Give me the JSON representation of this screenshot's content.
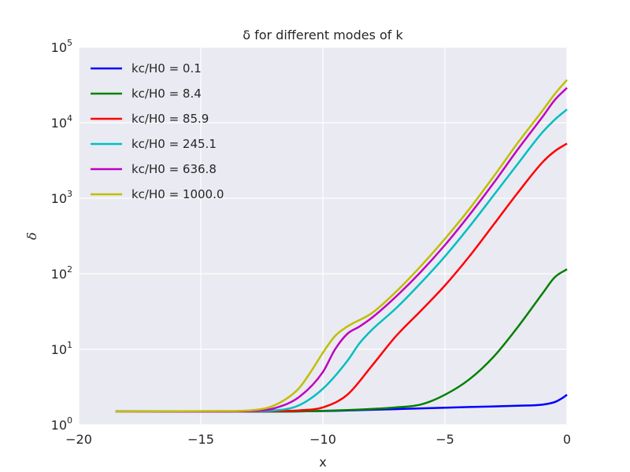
{
  "chart_data": {
    "type": "line",
    "title": "δ for different modes of k",
    "xlabel": "x",
    "ylabel": "δ",
    "xlim": [
      -20,
      0
    ],
    "ylim_log10": [
      0,
      5
    ],
    "yscale": "log",
    "grid": true,
    "legend_position": "top-left",
    "x_ticks": [
      -20,
      -15,
      -10,
      -5,
      0
    ],
    "x_tick_labels": [
      "−20",
      "−15",
      "−10",
      "−5",
      "0"
    ],
    "y_tick_labels": [
      "0",
      "1",
      "2",
      "3",
      "4",
      "5"
    ],
    "y_tick_base": "10",
    "legend_prefix": "kc/H0 = ",
    "series": [
      {
        "name": "0.1",
        "color": "#0000ff",
        "points": [
          [
            -18.5,
            1.5
          ],
          [
            -14,
            1.5
          ],
          [
            -12,
            1.5
          ],
          [
            -10,
            1.52
          ],
          [
            -8,
            1.58
          ],
          [
            -6,
            1.65
          ],
          [
            -4,
            1.72
          ],
          [
            -2,
            1.79
          ],
          [
            -1,
            1.85
          ],
          [
            -0.5,
            2.0
          ],
          [
            -0.2,
            2.25
          ],
          [
            0,
            2.5
          ]
        ]
      },
      {
        "name": "8.4",
        "color": "#008000",
        "points": [
          [
            -18.5,
            1.5
          ],
          [
            -14,
            1.5
          ],
          [
            -12,
            1.5
          ],
          [
            -10,
            1.53
          ],
          [
            -8,
            1.62
          ],
          [
            -7,
            1.7
          ],
          [
            -6,
            1.85
          ],
          [
            -5,
            2.5
          ],
          [
            -4,
            4
          ],
          [
            -3,
            8
          ],
          [
            -2,
            20
          ],
          [
            -1,
            55
          ],
          [
            -0.5,
            90
          ],
          [
            0,
            115
          ]
        ]
      },
      {
        "name": "85.9",
        "color": "#ff0000",
        "points": [
          [
            -18.5,
            1.5
          ],
          [
            -14,
            1.5
          ],
          [
            -12,
            1.52
          ],
          [
            -11,
            1.55
          ],
          [
            -10,
            1.7
          ],
          [
            -9,
            2.5
          ],
          [
            -8,
            6
          ],
          [
            -7,
            15
          ],
          [
            -6,
            32
          ],
          [
            -5,
            70
          ],
          [
            -4,
            170
          ],
          [
            -3,
            450
          ],
          [
            -2,
            1200
          ],
          [
            -1,
            3000
          ],
          [
            -0.5,
            4200
          ],
          [
            0,
            5300
          ]
        ]
      },
      {
        "name": "245.1",
        "color": "#00bfbf",
        "points": [
          [
            -18.5,
            1.5
          ],
          [
            -14,
            1.5
          ],
          [
            -12,
            1.55
          ],
          [
            -11,
            1.8
          ],
          [
            -10,
            3
          ],
          [
            -9,
            7
          ],
          [
            -8.5,
            12
          ],
          [
            -8,
            18
          ],
          [
            -7,
            35
          ],
          [
            -6,
            75
          ],
          [
            -5,
            170
          ],
          [
            -4,
            420
          ],
          [
            -3,
            1100
          ],
          [
            -2,
            2900
          ],
          [
            -1,
            7500
          ],
          [
            -0.5,
            11000
          ],
          [
            0,
            15000
          ]
        ]
      },
      {
        "name": "636.8",
        "color": "#bf00bf",
        "points": [
          [
            -18.5,
            1.5
          ],
          [
            -14,
            1.5
          ],
          [
            -12.5,
            1.55
          ],
          [
            -12,
            1.65
          ],
          [
            -11,
            2.3
          ],
          [
            -10,
            5
          ],
          [
            -9.5,
            10
          ],
          [
            -9,
            16
          ],
          [
            -8.5,
            20
          ],
          [
            -8,
            26
          ],
          [
            -7,
            50
          ],
          [
            -6,
            105
          ],
          [
            -5,
            240
          ],
          [
            -4,
            600
          ],
          [
            -3,
            1600
          ],
          [
            -2,
            4500
          ],
          [
            -1,
            12000
          ],
          [
            -0.5,
            20000
          ],
          [
            0,
            29000
          ]
        ]
      },
      {
        "name": "1000.0",
        "color": "#bfbf00",
        "points": [
          [
            -18.5,
            1.5
          ],
          [
            -14,
            1.52
          ],
          [
            -13,
            1.55
          ],
          [
            -12,
            1.8
          ],
          [
            -11,
            3
          ],
          [
            -10.5,
            5
          ],
          [
            -10,
            9
          ],
          [
            -9.5,
            15
          ],
          [
            -9,
            20
          ],
          [
            -8,
            30
          ],
          [
            -7,
            58
          ],
          [
            -6,
            125
          ],
          [
            -5,
            290
          ],
          [
            -4,
            720
          ],
          [
            -3,
            1950
          ],
          [
            -2,
            5500
          ],
          [
            -1,
            14500
          ],
          [
            -0.5,
            24000
          ],
          [
            0,
            37000
          ]
        ]
      }
    ]
  }
}
